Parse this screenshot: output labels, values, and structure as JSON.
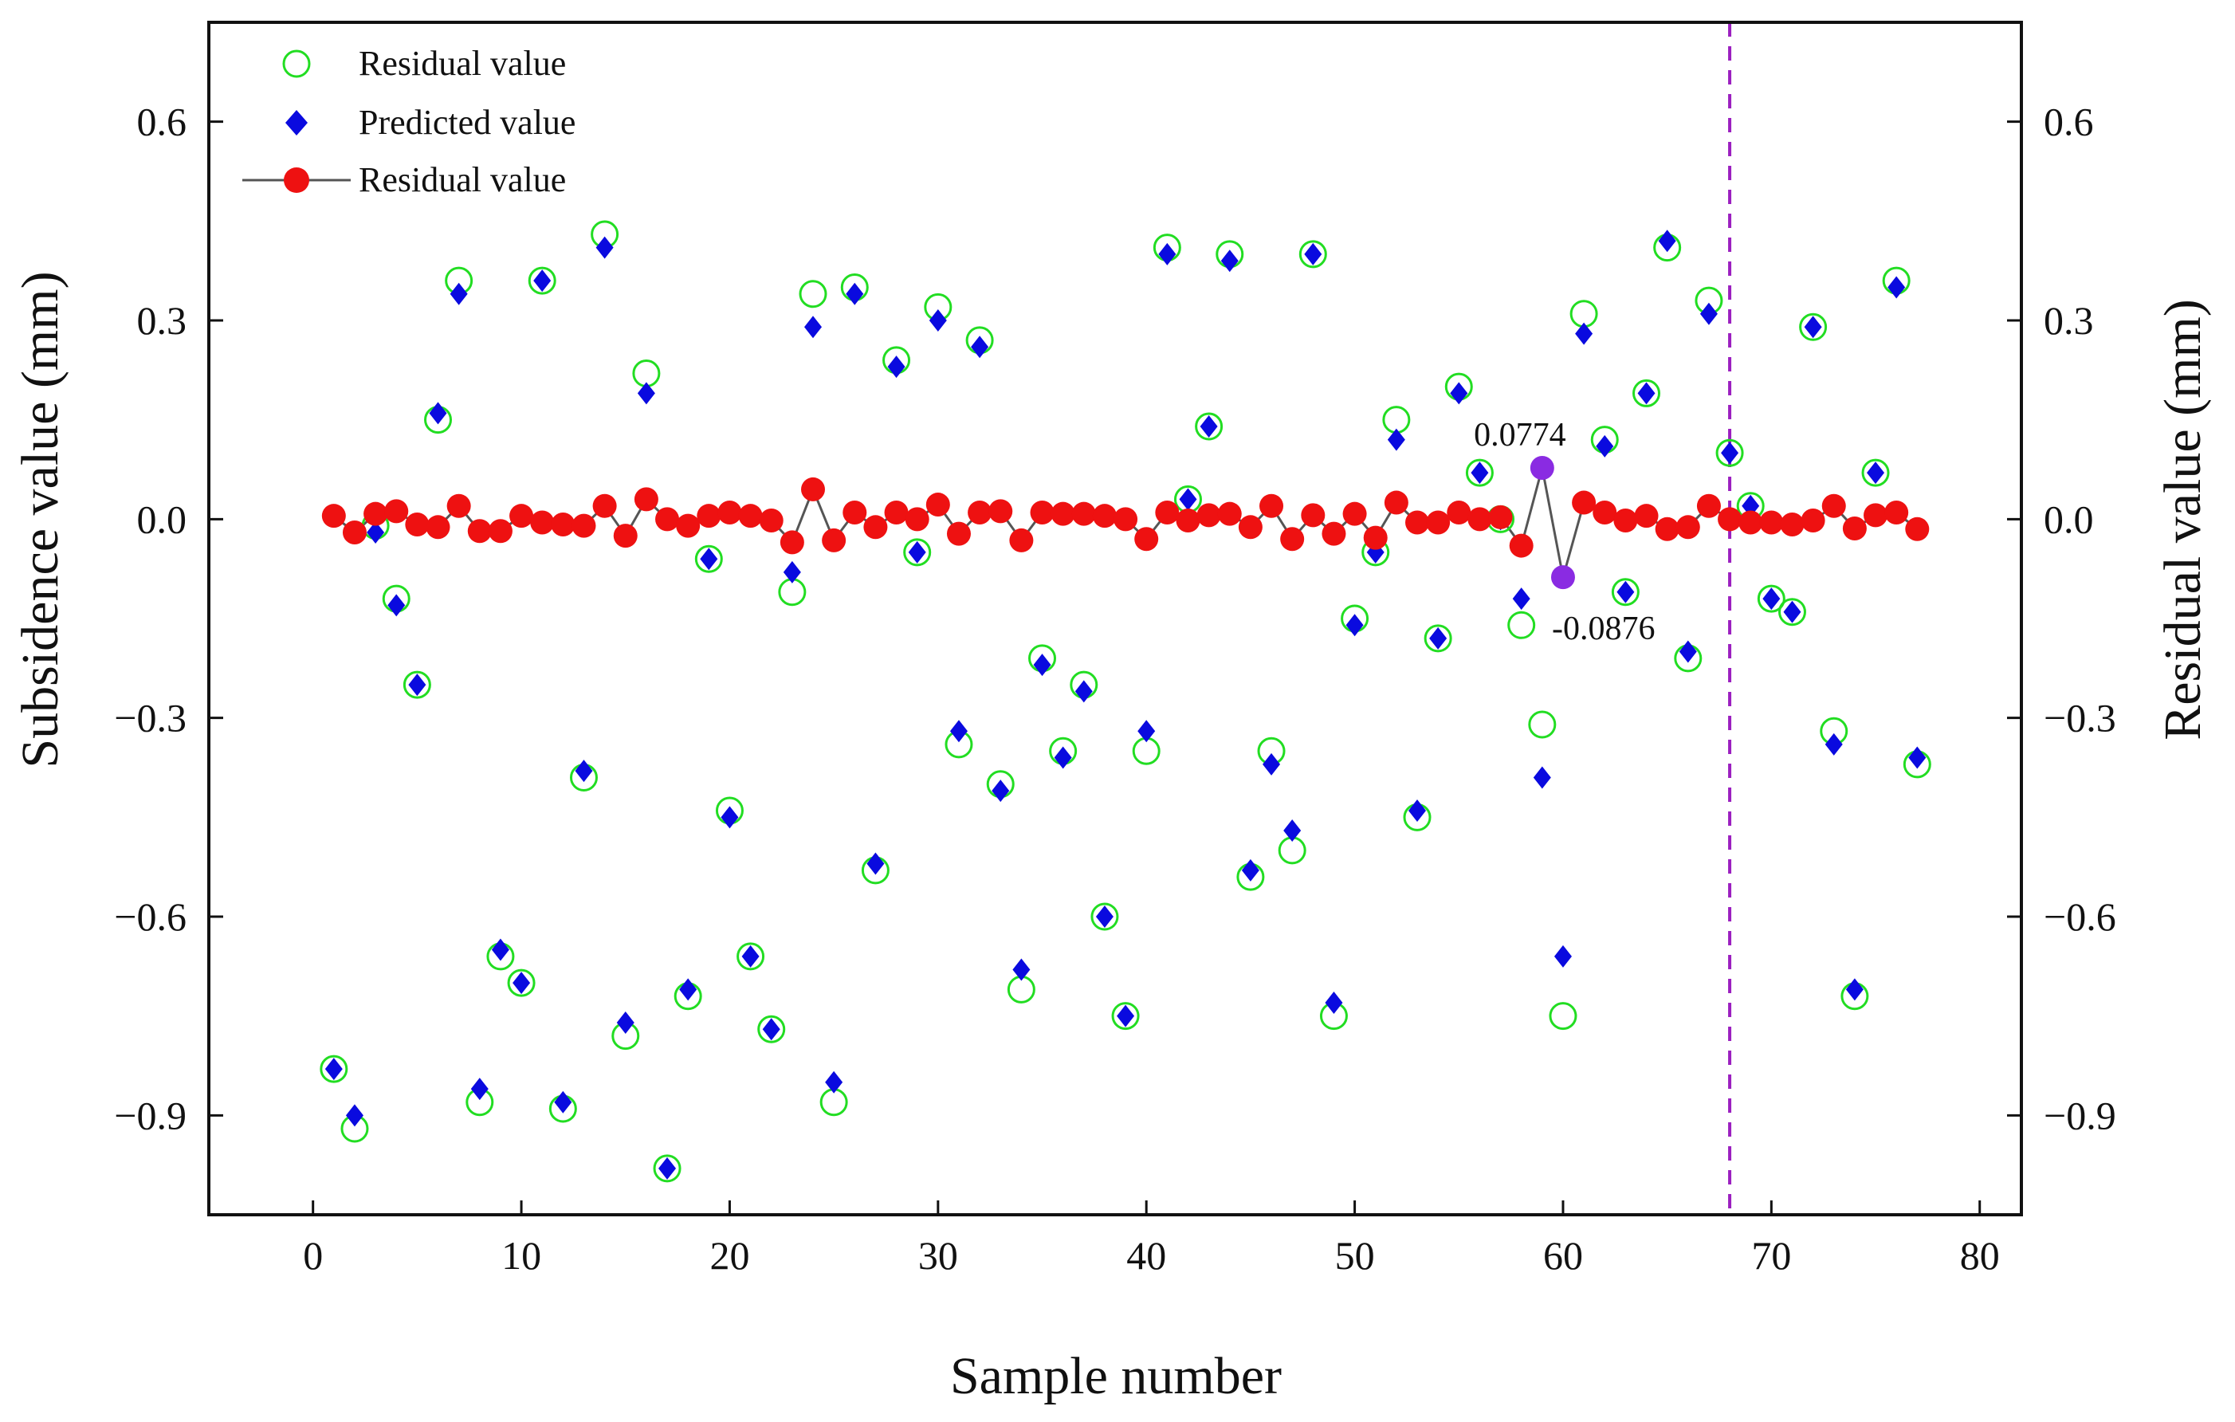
{
  "chart_data": {
    "type": "scatter",
    "title": "",
    "xlabel": "Sample number",
    "ylabel": "Subsidence value (mm)",
    "y2label": "Residual value (mm)",
    "xlim": [
      -5,
      82
    ],
    "ylim": [
      -1.05,
      0.75
    ],
    "y2lim": [
      -1.05,
      0.75
    ],
    "xticks": [
      0,
      10,
      20,
      30,
      40,
      50,
      60,
      70,
      80
    ],
    "xtick_labels": [
      "0",
      "10",
      "20",
      "30",
      "40",
      "50",
      "60",
      "70",
      "80"
    ],
    "yticks": [
      -0.9,
      -0.6,
      -0.3,
      0.0,
      0.3,
      0.6
    ],
    "ytick_labels": [
      "−0.9",
      "−0.6",
      "−0.3",
      "0.0",
      "0.3",
      "0.6"
    ],
    "y2ticks": [
      -0.9,
      -0.6,
      -0.3,
      0.0,
      0.3,
      0.6
    ],
    "y2tick_labels": [
      "−0.9",
      "−0.6",
      "−0.3",
      "0.0",
      "0.3",
      "0.6"
    ],
    "legend_position": "top-left",
    "split_line_x": 68,
    "colors": {
      "measured": "#22dd22",
      "predicted": "#0a0adf",
      "residual": "#ee1111",
      "residual_line": "#555555",
      "highlight": "#8a2be2",
      "split_line": "#9b1fc0",
      "axis": "#111111"
    },
    "series": [
      {
        "name": "Residual value",
        "marker": "open-circle",
        "x": [
          1,
          2,
          3,
          4,
          5,
          6,
          7,
          8,
          9,
          10,
          11,
          12,
          13,
          14,
          15,
          16,
          17,
          18,
          19,
          20,
          21,
          22,
          23,
          24,
          25,
          26,
          27,
          28,
          29,
          30,
          31,
          32,
          33,
          34,
          35,
          36,
          37,
          38,
          39,
          40,
          41,
          42,
          43,
          44,
          45,
          46,
          47,
          48,
          49,
          50,
          51,
          52,
          53,
          54,
          55,
          56,
          57,
          58,
          59,
          60,
          61,
          62,
          63,
          64,
          65,
          66,
          67,
          68,
          69,
          70,
          71,
          72,
          73,
          74,
          75,
          76,
          77
        ],
        "values": [
          -0.83,
          -0.92,
          -0.01,
          -0.12,
          -0.25,
          0.15,
          0.36,
          -0.88,
          -0.66,
          -0.7,
          0.36,
          -0.89,
          -0.39,
          0.43,
          -0.78,
          0.22,
          -0.98,
          -0.72,
          -0.06,
          -0.44,
          -0.66,
          -0.77,
          -0.11,
          0.34,
          -0.88,
          0.35,
          -0.53,
          0.24,
          -0.05,
          0.32,
          -0.34,
          0.27,
          -0.4,
          -0.71,
          -0.21,
          -0.35,
          -0.25,
          -0.6,
          -0.75,
          -0.35,
          0.41,
          0.03,
          0.14,
          0.4,
          -0.54,
          -0.35,
          -0.5,
          0.4,
          -0.75,
          -0.15,
          -0.05,
          0.15,
          -0.45,
          -0.18,
          0.2,
          0.07,
          0.0,
          -0.16,
          -0.31,
          -0.75,
          0.31,
          0.12,
          -0.11,
          0.19,
          0.41,
          -0.21,
          0.33,
          0.1,
          0.02,
          -0.12,
          -0.14,
          0.29,
          -0.32,
          -0.72,
          0.07,
          0.36,
          -0.37
        ]
      },
      {
        "name": "Predicted value",
        "marker": "filled-diamond",
        "x": [
          1,
          2,
          3,
          4,
          5,
          6,
          7,
          8,
          9,
          10,
          11,
          12,
          13,
          14,
          15,
          16,
          17,
          18,
          19,
          20,
          21,
          22,
          23,
          24,
          25,
          26,
          27,
          28,
          29,
          30,
          31,
          32,
          33,
          34,
          35,
          36,
          37,
          38,
          39,
          40,
          41,
          42,
          43,
          44,
          45,
          46,
          47,
          48,
          49,
          50,
          51,
          52,
          53,
          54,
          55,
          56,
          57,
          58,
          59,
          60,
          61,
          62,
          63,
          64,
          65,
          66,
          67,
          68,
          69,
          70,
          71,
          72,
          73,
          74,
          75,
          76,
          77
        ],
        "values": [
          -0.83,
          -0.9,
          -0.02,
          -0.13,
          -0.25,
          0.16,
          0.34,
          -0.86,
          -0.65,
          -0.7,
          0.36,
          -0.88,
          -0.38,
          0.41,
          -0.76,
          0.19,
          -0.98,
          -0.71,
          -0.06,
          -0.45,
          -0.66,
          -0.77,
          -0.08,
          0.29,
          -0.85,
          0.34,
          -0.52,
          0.23,
          -0.05,
          0.3,
          -0.32,
          0.26,
          -0.41,
          -0.68,
          -0.22,
          -0.36,
          -0.26,
          -0.6,
          -0.75,
          -0.32,
          0.4,
          0.03,
          0.14,
          0.39,
          -0.53,
          -0.37,
          -0.47,
          0.4,
          -0.73,
          -0.16,
          -0.05,
          0.12,
          -0.44,
          -0.18,
          0.19,
          0.07,
          0.0,
          -0.12,
          -0.39,
          -0.66,
          0.28,
          0.11,
          -0.11,
          0.19,
          0.42,
          -0.2,
          0.31,
          0.1,
          0.02,
          -0.12,
          -0.14,
          0.29,
          -0.34,
          -0.71,
          0.07,
          0.35,
          -0.36
        ]
      },
      {
        "name": "Residual value",
        "marker": "filled-circle-line",
        "x": [
          1,
          2,
          3,
          4,
          5,
          6,
          7,
          8,
          9,
          10,
          11,
          12,
          13,
          14,
          15,
          16,
          17,
          18,
          19,
          20,
          21,
          22,
          23,
          24,
          25,
          26,
          27,
          28,
          29,
          30,
          31,
          32,
          33,
          34,
          35,
          36,
          37,
          38,
          39,
          40,
          41,
          42,
          43,
          44,
          45,
          46,
          47,
          48,
          49,
          50,
          51,
          52,
          53,
          54,
          55,
          56,
          57,
          58,
          59,
          60,
          61,
          62,
          63,
          64,
          65,
          66,
          67,
          68,
          69,
          70,
          71,
          72,
          73,
          74,
          75,
          76,
          77
        ],
        "values": [
          0.005,
          -0.02,
          0.008,
          0.012,
          -0.008,
          -0.012,
          0.02,
          -0.018,
          -0.018,
          0.005,
          -0.005,
          -0.008,
          -0.01,
          0.02,
          -0.025,
          0.03,
          0.0,
          -0.01,
          0.005,
          0.01,
          0.005,
          -0.002,
          -0.035,
          0.045,
          -0.032,
          0.01,
          -0.012,
          0.01,
          0.0,
          0.022,
          -0.022,
          0.01,
          0.012,
          -0.032,
          0.01,
          0.008,
          0.008,
          0.005,
          0.0,
          -0.03,
          0.01,
          -0.002,
          0.006,
          0.008,
          -0.012,
          0.02,
          -0.03,
          0.006,
          -0.022,
          0.008,
          -0.028,
          0.025,
          -0.005,
          -0.005,
          0.01,
          0.0,
          0.003,
          -0.04,
          0.0774,
          -0.0876,
          0.025,
          0.01,
          -0.002,
          0.005,
          -0.015,
          -0.012,
          0.02,
          0.0,
          -0.005,
          -0.005,
          -0.008,
          -0.002,
          0.02,
          -0.014,
          0.006,
          0.01,
          -0.015
        ]
      }
    ],
    "annotations": [
      {
        "x": 59,
        "value": 0.0774,
        "text": "0.0774",
        "position": "above"
      },
      {
        "x": 60,
        "value": -0.0876,
        "text": "-0.0876",
        "position": "below-right"
      }
    ]
  }
}
